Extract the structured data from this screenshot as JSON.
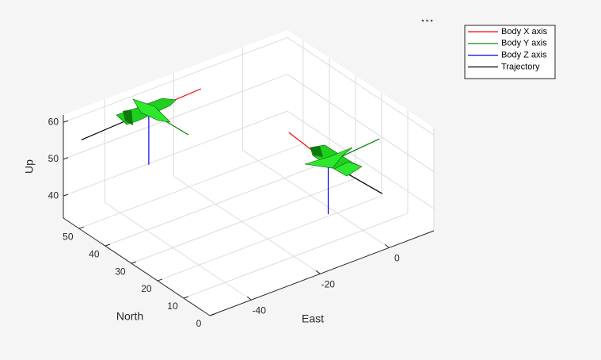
{
  "chart_data": {
    "type": "line3d",
    "xlabel": "East",
    "ylabel": "North",
    "zlabel": "Up",
    "xlim": [
      -52,
      13
    ],
    "ylim": [
      0,
      56
    ],
    "zlim": [
      34,
      62
    ],
    "xticks": [
      -40,
      -20,
      0
    ],
    "yticks": [
      0,
      10,
      20,
      30,
      40,
      50
    ],
    "zticks": [
      40,
      50,
      60
    ],
    "grid": true,
    "legend_position": "northeast",
    "series": [
      {
        "name": "Body X axis",
        "color": "#ff0000",
        "x": [
          -31,
          -15.2,
          null,
          -4,
          -2.9
        ],
        "y": [
          51,
          51.9,
          null,
          18,
          34.5
        ],
        "z": [
          58,
          58,
          null,
          50,
          50
        ]
      },
      {
        "name": "Body Y axis",
        "color": "#008000",
        "x": [
          -31,
          -30.3,
          null,
          -4,
          12.1
        ],
        "y": [
          51,
          36.8,
          null,
          18,
          19.6
        ],
        "z": [
          58,
          58,
          null,
          50,
          50
        ]
      },
      {
        "name": "Body Z axis",
        "color": "#0000ff",
        "x": [
          -31,
          -31,
          null,
          -4,
          -4
        ],
        "y": [
          51,
          51,
          null,
          18,
          18
        ],
        "z": [
          58,
          43.4,
          null,
          50,
          36
        ]
      },
      {
        "name": "Trajectory",
        "color": "#000000",
        "x": [
          -51.5,
          -31,
          null,
          -4,
          -2.6
        ],
        "y": [
          49.8,
          51,
          null,
          18,
          -0.8
        ],
        "z": [
          58,
          58,
          null,
          50,
          50
        ]
      }
    ]
  }
}
